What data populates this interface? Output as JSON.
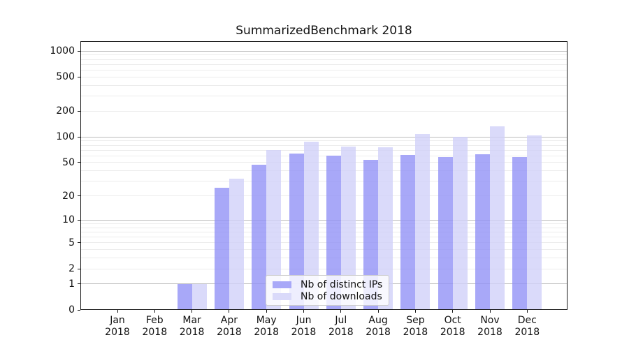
{
  "chart_data": {
    "type": "bar",
    "title": "SummarizedBenchmark 2018",
    "categories": [
      "Jan",
      "Feb",
      "Mar",
      "Apr",
      "May",
      "Jun",
      "Jul",
      "Aug",
      "Sep",
      "Oct",
      "Nov",
      "Dec"
    ],
    "year_label": "2018",
    "series": [
      {
        "name": "Nb of distinct IPs",
        "color": "#a8a8f8",
        "fill": "rgba(146,146,246,0.8)",
        "values": [
          0,
          0,
          1,
          25,
          47,
          64,
          60,
          54,
          61,
          58,
          63,
          58
        ]
      },
      {
        "name": "Nb of downloads",
        "color": "#dadafa",
        "fill": "rgba(209,209,249,0.8)",
        "values": [
          0,
          0,
          1,
          32,
          70,
          88,
          77,
          76,
          108,
          101,
          134,
          105
        ]
      }
    ],
    "yscale": "log10(1+y)",
    "ylim": [
      0,
      1300
    ],
    "y_ticks": [
      0,
      1,
      2,
      5,
      10,
      20,
      50,
      100,
      200,
      500,
      1000
    ],
    "grid": {
      "major_values": [
        1,
        10,
        100,
        1000
      ],
      "minor_values": [
        2,
        3,
        4,
        5,
        6,
        7,
        8,
        9,
        20,
        30,
        40,
        50,
        60,
        70,
        80,
        90,
        200,
        300,
        400,
        500,
        600,
        700,
        800,
        900
      ],
      "major_color": "#bdbdbd",
      "minor_color": "#ececec"
    },
    "legend": {
      "position": "lower-center"
    },
    "xlabel": "",
    "ylabel": ""
  }
}
